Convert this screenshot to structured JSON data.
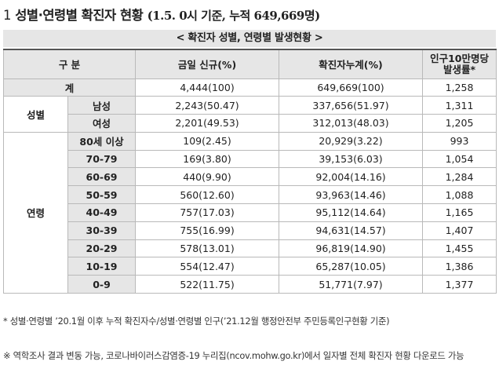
{
  "heading": {
    "number": "1",
    "title": "성별·연령별 확진자 현황",
    "date_note": "(1.5. 0시 기준, 누적 649,669명)"
  },
  "subtitle": "< 확진자 성별, 연령별 발생현황 >",
  "table": {
    "headers": {
      "category": "구 분",
      "new": "금일 신규(%)",
      "cumulative": "확진자누계(%)",
      "rate_line1": "인구10만명당",
      "rate_line2": "발생률*"
    },
    "total": {
      "label": "계",
      "new": "4,444(100)",
      "cumulative": "649,669(100)",
      "rate": "1,258"
    },
    "sex_group": "성별",
    "sex_rows": [
      {
        "label": "남성",
        "new": "2,243(50.47)",
        "cumulative": "337,656(51.97)",
        "rate": "1,311"
      },
      {
        "label": "여성",
        "new": "2,201(49.53)",
        "cumulative": "312,013(48.03)",
        "rate": "1,205"
      }
    ],
    "age_group": "연령",
    "age_rows": [
      {
        "label": "80세 이상",
        "new": "109(2.45)",
        "cumulative": "20,929(3.22)",
        "rate": "993"
      },
      {
        "label": "70-79",
        "new": "169(3.80)",
        "cumulative": "39,153(6.03)",
        "rate": "1,054"
      },
      {
        "label": "60-69",
        "new": "440(9.90)",
        "cumulative": "92,004(14.16)",
        "rate": "1,284"
      },
      {
        "label": "50-59",
        "new": "560(12.60)",
        "cumulative": "93,963(14.46)",
        "rate": "1,088"
      },
      {
        "label": "40-49",
        "new": "757(17.03)",
        "cumulative": "95,112(14.64)",
        "rate": "1,165"
      },
      {
        "label": "30-39",
        "new": "755(16.99)",
        "cumulative": "94,631(14.57)",
        "rate": "1,407"
      },
      {
        "label": "20-29",
        "new": "578(13.01)",
        "cumulative": "96,819(14.90)",
        "rate": "1,455"
      },
      {
        "label": "10-19",
        "new": "554(12.47)",
        "cumulative": "65,287(10.05)",
        "rate": "1,386"
      },
      {
        "label": "0-9",
        "new": "522(11.75)",
        "cumulative": "51,771(7.97)",
        "rate": "1,377"
      }
    ]
  },
  "footnotes": {
    "note1": "* 성별·연령별 ’20.1월 이후 누적 확진자수/성별·연령별 인구(’21.12월 행정안전부 주민등록인구현황 기준)",
    "note2": "※ 역학조사 결과 변동 가능, 코로나바이러스감염증-19 누리집(ncov.mohw.go.kr)에서 일자별 전체 확진자 현황 다운로드 가능"
  }
}
